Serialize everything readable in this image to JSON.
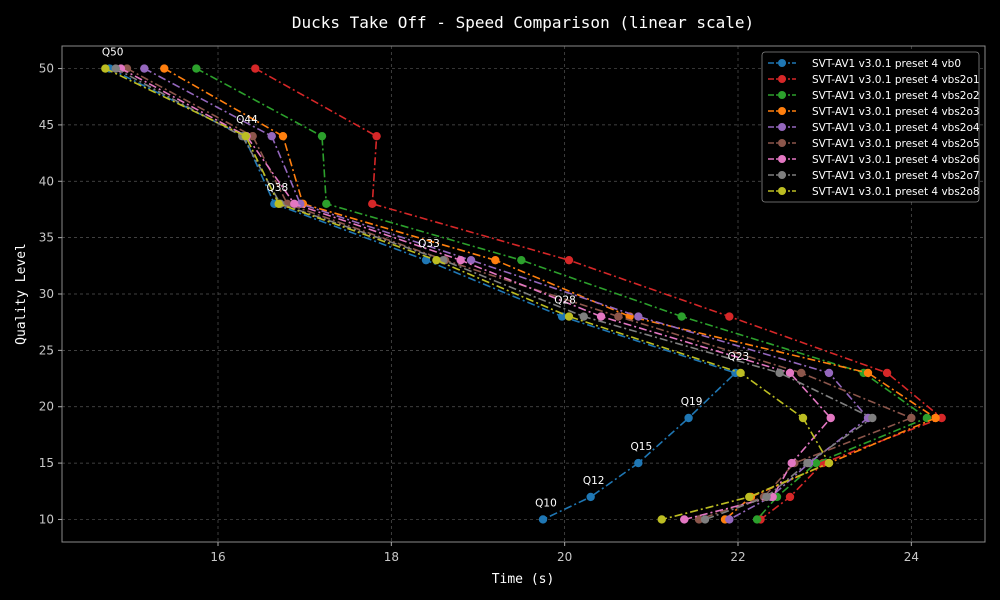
{
  "chart_data": {
    "type": "line",
    "title": "Ducks Take Off - Speed Comparison (linear scale)",
    "xlabel": "Time (s)",
    "ylabel": "Quality Level",
    "xlim": [
      14.2,
      24.85
    ],
    "ylim": [
      8,
      52
    ],
    "xticks": [
      16,
      18,
      20,
      22,
      24
    ],
    "yticks": [
      10,
      15,
      20,
      25,
      30,
      35,
      40,
      45,
      50
    ],
    "grid": true,
    "legend_position": "top-right",
    "annotations": [
      {
        "text": "Q50",
        "x": 14.75,
        "y": 50
      },
      {
        "text": "Q44",
        "x": 16.3,
        "y": 44
      },
      {
        "text": "Q38",
        "x": 16.65,
        "y": 38
      },
      {
        "text": "Q33",
        "x": 18.4,
        "y": 33
      },
      {
        "text": "Q28",
        "x": 19.97,
        "y": 28
      },
      {
        "text": "Q23",
        "x": 21.97,
        "y": 23
      },
      {
        "text": "Q19",
        "x": 21.43,
        "y": 19
      },
      {
        "text": "Q15",
        "x": 20.85,
        "y": 15
      },
      {
        "text": "Q12",
        "x": 20.3,
        "y": 12
      },
      {
        "text": "Q10",
        "x": 19.75,
        "y": 10
      }
    ],
    "series": [
      {
        "name": "SVT-AV1 v3.0.1 preset 4 vb0",
        "color": "#1f77b4",
        "points": [
          [
            14.75,
            50
          ],
          [
            16.3,
            44
          ],
          [
            16.65,
            38
          ],
          [
            18.4,
            33
          ],
          [
            19.97,
            28
          ],
          [
            21.97,
            23
          ],
          [
            21.43,
            19
          ],
          [
            20.85,
            15
          ],
          [
            20.3,
            12
          ],
          [
            19.75,
            10
          ]
        ]
      },
      {
        "name": "SVT-AV1 v3.0.1 preset 4 vbs2o1",
        "color": "#d62728",
        "points": [
          [
            16.43,
            50
          ],
          [
            17.83,
            44
          ],
          [
            17.78,
            38
          ],
          [
            20.05,
            33
          ],
          [
            21.9,
            28
          ],
          [
            23.72,
            23
          ],
          [
            24.35,
            19
          ],
          [
            22.98,
            15
          ],
          [
            22.6,
            12
          ],
          [
            22.26,
            10
          ]
        ]
      },
      {
        "name": "SVT-AV1 v3.0.1 preset 4 vbs2o2",
        "color": "#2ca02c",
        "points": [
          [
            15.75,
            50
          ],
          [
            17.2,
            44
          ],
          [
            17.25,
            38
          ],
          [
            19.5,
            33
          ],
          [
            21.35,
            28
          ],
          [
            23.45,
            23
          ],
          [
            24.18,
            19
          ],
          [
            22.9,
            15
          ],
          [
            22.45,
            12
          ],
          [
            22.22,
            10
          ]
        ]
      },
      {
        "name": "SVT-AV1 v3.0.1 preset 4 vbs2o3",
        "color": "#ff7f0e",
        "points": [
          [
            15.38,
            50
          ],
          [
            16.75,
            44
          ],
          [
            16.98,
            38
          ],
          [
            19.2,
            33
          ],
          [
            20.75,
            28
          ],
          [
            23.5,
            23
          ],
          [
            24.28,
            19
          ],
          [
            23.05,
            15
          ],
          [
            22.15,
            12
          ],
          [
            21.85,
            10
          ]
        ]
      },
      {
        "name": "SVT-AV1 v3.0.1 preset 4 vbs2o4",
        "color": "#9467bd",
        "points": [
          [
            15.15,
            50
          ],
          [
            16.62,
            44
          ],
          [
            16.95,
            38
          ],
          [
            18.92,
            33
          ],
          [
            20.85,
            28
          ],
          [
            23.05,
            23
          ],
          [
            23.5,
            19
          ],
          [
            22.82,
            15
          ],
          [
            22.38,
            12
          ],
          [
            21.9,
            10
          ]
        ]
      },
      {
        "name": "SVT-AV1 v3.0.1 preset 4 vbs2o5",
        "color": "#8c564b",
        "points": [
          [
            14.95,
            50
          ],
          [
            16.4,
            44
          ],
          [
            16.8,
            38
          ],
          [
            18.62,
            33
          ],
          [
            20.62,
            28
          ],
          [
            22.73,
            23
          ],
          [
            24.0,
            19
          ],
          [
            22.65,
            15
          ],
          [
            22.3,
            12
          ],
          [
            21.55,
            10
          ]
        ]
      },
      {
        "name": "SVT-AV1 v3.0.1 preset 4 vbs2o6",
        "color": "#e377c2",
        "points": [
          [
            14.88,
            50
          ],
          [
            16.33,
            44
          ],
          [
            16.88,
            38
          ],
          [
            18.8,
            33
          ],
          [
            20.42,
            28
          ],
          [
            22.6,
            23
          ],
          [
            23.07,
            19
          ],
          [
            22.62,
            15
          ],
          [
            22.4,
            12
          ],
          [
            21.38,
            10
          ]
        ]
      },
      {
        "name": "SVT-AV1 v3.0.1 preset 4 vbs2o7",
        "color": "#7f7f7f",
        "points": [
          [
            14.82,
            50
          ],
          [
            16.28,
            44
          ],
          [
            16.72,
            38
          ],
          [
            18.6,
            33
          ],
          [
            20.22,
            28
          ],
          [
            22.48,
            23
          ],
          [
            23.55,
            19
          ],
          [
            22.8,
            15
          ],
          [
            22.33,
            12
          ],
          [
            21.62,
            10
          ]
        ]
      },
      {
        "name": "SVT-AV1 v3.0.1 preset 4 vbs2o8",
        "color": "#bcbd22",
        "points": [
          [
            14.7,
            50
          ],
          [
            16.32,
            44
          ],
          [
            16.7,
            38
          ],
          [
            18.52,
            33
          ],
          [
            20.05,
            28
          ],
          [
            22.03,
            23
          ],
          [
            22.75,
            19
          ],
          [
            23.05,
            15
          ],
          [
            22.13,
            12
          ],
          [
            21.12,
            10
          ]
        ]
      }
    ]
  }
}
